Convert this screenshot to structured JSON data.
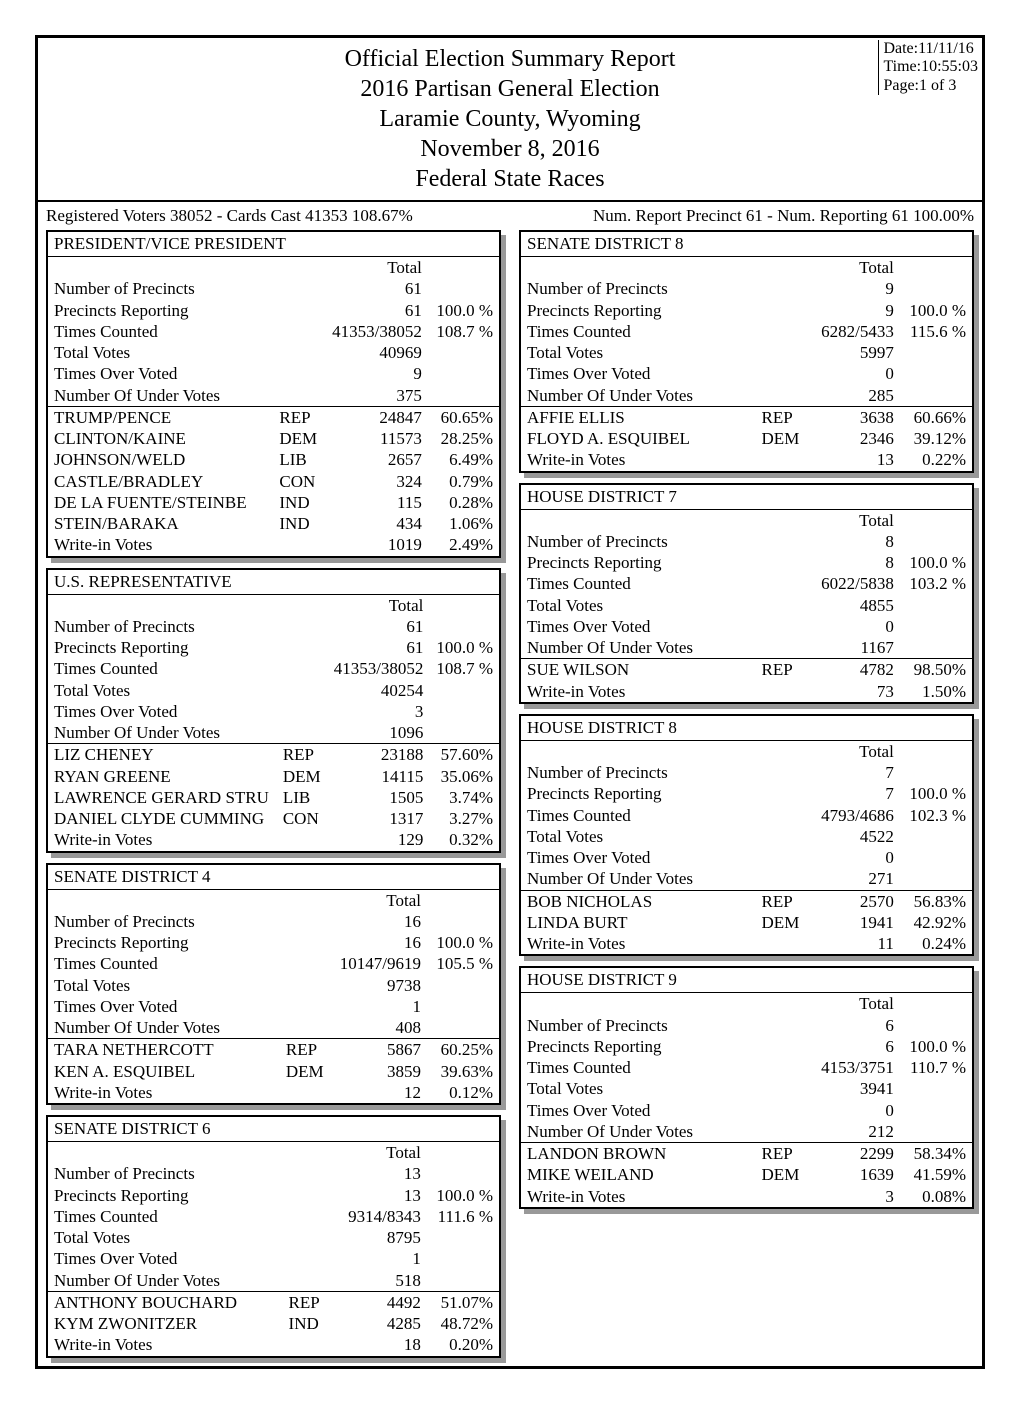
{
  "header": {
    "lines": [
      "Official Election Summary Report",
      "2016 Partisan General Election",
      "Laramie County, Wyoming",
      "November 8, 2016",
      "Federal  State Races"
    ],
    "date": "Date:11/11/16",
    "time": "Time:10:55:03",
    "page": "Page:1 of 3"
  },
  "stats": {
    "left": "Registered Voters 38052 - Cards Cast 41353   108.67%",
    "right": "Num. Report Precinct 61 - Num. Reporting 61    100.00%"
  },
  "races_left": [
    {
      "title": "PRESIDENT/VICE PRESIDENT",
      "total_label": "Total",
      "stats": [
        {
          "label": "Number of Precincts",
          "value": "61",
          "pct": ""
        },
        {
          "label": "Precincts Reporting",
          "value": "61",
          "pct": "100.0  %"
        },
        {
          "label": "Times Counted",
          "value": "41353/38052",
          "pct": "108.7  %"
        },
        {
          "label": "Total Votes",
          "value": "40969",
          "pct": ""
        },
        {
          "label": "Times Over Voted",
          "value": "9",
          "pct": ""
        },
        {
          "label": "Number Of Under Votes",
          "value": "375",
          "pct": ""
        }
      ],
      "candidates": [
        {
          "name": "TRUMP/PENCE",
          "party": "REP",
          "value": "24847",
          "pct": "60.65%"
        },
        {
          "name": "CLINTON/KAINE",
          "party": "DEM",
          "value": "11573",
          "pct": "28.25%"
        },
        {
          "name": "JOHNSON/WELD",
          "party": "LIB",
          "value": "2657",
          "pct": "6.49%"
        },
        {
          "name": "CASTLE/BRADLEY",
          "party": "CON",
          "value": "324",
          "pct": "0.79%"
        },
        {
          "name": "DE LA FUENTE/STEINBE",
          "party": "IND",
          "value": "115",
          "pct": "0.28%"
        },
        {
          "name": "STEIN/BARAKA",
          "party": "IND",
          "value": "434",
          "pct": "1.06%"
        },
        {
          "name": "Write-in Votes",
          "party": "",
          "value": "1019",
          "pct": "2.49%"
        }
      ]
    },
    {
      "title": "U.S. REPRESENTATIVE",
      "total_label": "Total",
      "stats": [
        {
          "label": "Number of Precincts",
          "value": "61",
          "pct": ""
        },
        {
          "label": "Precincts Reporting",
          "value": "61",
          "pct": "100.0  %"
        },
        {
          "label": "Times Counted",
          "value": "41353/38052",
          "pct": "108.7  %"
        },
        {
          "label": "Total Votes",
          "value": "40254",
          "pct": ""
        },
        {
          "label": "Times Over Voted",
          "value": "3",
          "pct": ""
        },
        {
          "label": "Number Of Under Votes",
          "value": "1096",
          "pct": ""
        }
      ],
      "candidates": [
        {
          "name": "LIZ CHENEY",
          "party": "REP",
          "value": "23188",
          "pct": "57.60%"
        },
        {
          "name": "RYAN GREENE",
          "party": "DEM",
          "value": "14115",
          "pct": "35.06%"
        },
        {
          "name": "LAWRENCE GERARD STRU",
          "party": "LIB",
          "value": "1505",
          "pct": "3.74%"
        },
        {
          "name": "DANIEL CLYDE CUMMING",
          "party": "CON",
          "value": "1317",
          "pct": "3.27%"
        },
        {
          "name": "Write-in Votes",
          "party": "",
          "value": "129",
          "pct": "0.32%"
        }
      ]
    },
    {
      "title": "SENATE DISTRICT 4",
      "total_label": "Total",
      "stats": [
        {
          "label": "Number of Precincts",
          "value": "16",
          "pct": ""
        },
        {
          "label": "Precincts Reporting",
          "value": "16",
          "pct": "100.0  %"
        },
        {
          "label": "Times Counted",
          "value": "10147/9619",
          "pct": "105.5  %"
        },
        {
          "label": "Total Votes",
          "value": "9738",
          "pct": ""
        },
        {
          "label": "Times Over Voted",
          "value": "1",
          "pct": ""
        },
        {
          "label": "Number Of Under Votes",
          "value": "408",
          "pct": ""
        }
      ],
      "candidates": [
        {
          "name": "TARA NETHERCOTT",
          "party": "REP",
          "value": "5867",
          "pct": "60.25%"
        },
        {
          "name": "KEN A. ESQUIBEL",
          "party": "DEM",
          "value": "3859",
          "pct": "39.63%"
        },
        {
          "name": "Write-in Votes",
          "party": "",
          "value": "12",
          "pct": "0.12%"
        }
      ]
    },
    {
      "title": "SENATE DISTRICT 6",
      "total_label": "Total",
      "stats": [
        {
          "label": "Number of Precincts",
          "value": "13",
          "pct": ""
        },
        {
          "label": "Precincts Reporting",
          "value": "13",
          "pct": "100.0  %"
        },
        {
          "label": "Times Counted",
          "value": "9314/8343",
          "pct": "111.6  %"
        },
        {
          "label": "Total Votes",
          "value": "8795",
          "pct": ""
        },
        {
          "label": "Times Over Voted",
          "value": "1",
          "pct": ""
        },
        {
          "label": "Number Of Under Votes",
          "value": "518",
          "pct": ""
        }
      ],
      "candidates": [
        {
          "name": "ANTHONY BOUCHARD",
          "party": "REP",
          "value": "4492",
          "pct": "51.07%"
        },
        {
          "name": "KYM ZWONITZER",
          "party": "IND",
          "value": "4285",
          "pct": "48.72%"
        },
        {
          "name": "Write-in Votes",
          "party": "",
          "value": "18",
          "pct": "0.20%"
        }
      ]
    }
  ],
  "races_right": [
    {
      "title": "SENATE DISTRICT 8",
      "total_label": "Total",
      "stats": [
        {
          "label": "Number of Precincts",
          "value": "9",
          "pct": ""
        },
        {
          "label": "Precincts Reporting",
          "value": "9",
          "pct": "100.0  %"
        },
        {
          "label": "Times Counted",
          "value": "6282/5433",
          "pct": "115.6  %"
        },
        {
          "label": "Total Votes",
          "value": "5997",
          "pct": ""
        },
        {
          "label": "Times Over Voted",
          "value": "0",
          "pct": ""
        },
        {
          "label": "Number Of Under Votes",
          "value": "285",
          "pct": ""
        }
      ],
      "candidates": [
        {
          "name": "AFFIE ELLIS",
          "party": "REP",
          "value": "3638",
          "pct": "60.66%"
        },
        {
          "name": "FLOYD A. ESQUIBEL",
          "party": "DEM",
          "value": "2346",
          "pct": "39.12%"
        },
        {
          "name": "Write-in Votes",
          "party": "",
          "value": "13",
          "pct": "0.22%"
        }
      ]
    },
    {
      "title": "HOUSE DISTRICT 7",
      "total_label": "Total",
      "stats": [
        {
          "label": "Number of Precincts",
          "value": "8",
          "pct": ""
        },
        {
          "label": "Precincts Reporting",
          "value": "8",
          "pct": "100.0  %"
        },
        {
          "label": "Times Counted",
          "value": "6022/5838",
          "pct": "103.2  %"
        },
        {
          "label": "Total Votes",
          "value": "4855",
          "pct": ""
        },
        {
          "label": "Times Over Voted",
          "value": "0",
          "pct": ""
        },
        {
          "label": "Number Of Under Votes",
          "value": "1167",
          "pct": ""
        }
      ],
      "candidates": [
        {
          "name": "SUE WILSON",
          "party": "REP",
          "value": "4782",
          "pct": "98.50%"
        },
        {
          "name": "Write-in Votes",
          "party": "",
          "value": "73",
          "pct": "1.50%"
        }
      ]
    },
    {
      "title": "HOUSE DISTRICT 8",
      "total_label": "Total",
      "stats": [
        {
          "label": "Number of Precincts",
          "value": "7",
          "pct": ""
        },
        {
          "label": "Precincts Reporting",
          "value": "7",
          "pct": "100.0  %"
        },
        {
          "label": "Times Counted",
          "value": "4793/4686",
          "pct": "102.3  %"
        },
        {
          "label": "Total Votes",
          "value": "4522",
          "pct": ""
        },
        {
          "label": "Times Over Voted",
          "value": "0",
          "pct": ""
        },
        {
          "label": "Number Of Under Votes",
          "value": "271",
          "pct": ""
        }
      ],
      "candidates": [
        {
          "name": "BOB NICHOLAS",
          "party": "REP",
          "value": "2570",
          "pct": "56.83%"
        },
        {
          "name": "LINDA BURT",
          "party": "DEM",
          "value": "1941",
          "pct": "42.92%"
        },
        {
          "name": "Write-in Votes",
          "party": "",
          "value": "11",
          "pct": "0.24%"
        }
      ]
    },
    {
      "title": "HOUSE DISTRICT 9",
      "total_label": "Total",
      "stats": [
        {
          "label": "Number of Precincts",
          "value": "6",
          "pct": ""
        },
        {
          "label": "Precincts Reporting",
          "value": "6",
          "pct": "100.0  %"
        },
        {
          "label": "Times Counted",
          "value": "4153/3751",
          "pct": "110.7  %"
        },
        {
          "label": "Total Votes",
          "value": "3941",
          "pct": ""
        },
        {
          "label": "Times Over Voted",
          "value": "0",
          "pct": ""
        },
        {
          "label": "Number Of Under Votes",
          "value": "212",
          "pct": ""
        }
      ],
      "candidates": [
        {
          "name": "LANDON BROWN",
          "party": "REP",
          "value": "2299",
          "pct": "58.34%"
        },
        {
          "name": "MIKE WEILAND",
          "party": "DEM",
          "value": "1639",
          "pct": "41.59%"
        },
        {
          "name": "Write-in Votes",
          "party": "",
          "value": "3",
          "pct": "0.08%"
        }
      ]
    }
  ]
}
